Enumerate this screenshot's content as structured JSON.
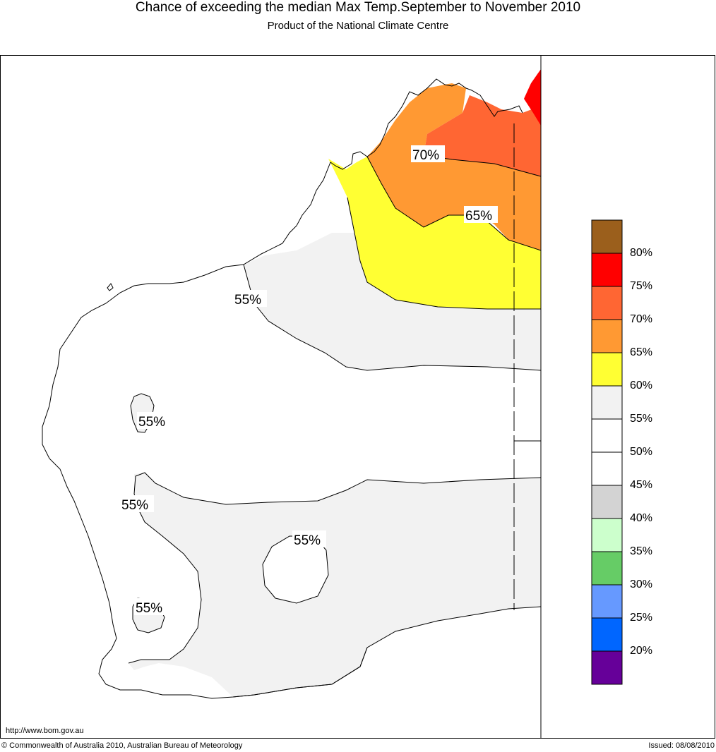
{
  "header": {
    "title": "Chance of exceeding the median Max Temp.September to November 2010",
    "subtitle": "Product of the National Climate Centre"
  },
  "footer": {
    "url": "http://www.bom.gov.au",
    "copyright": "© Commonwealth of Australia 2010, Australian Bureau of Meteorology",
    "issued": "Issued: 08/08/2010"
  },
  "legend": {
    "colors": [
      "#9b5f1c",
      "#ff0000",
      "#ff6633",
      "#ff9933",
      "#ffff33",
      "#f2f2f2",
      "#ffffff",
      "#ffffff",
      "#d3d3d3",
      "#ccffcc",
      "#66cc66",
      "#6699ff",
      "#0066ff",
      "#660099"
    ],
    "labels": [
      "80%",
      "75%",
      "70%",
      "65%",
      "60%",
      "55%",
      "50%",
      "45%",
      "40%",
      "35%",
      "30%",
      "25%",
      "20%"
    ]
  },
  "contour_labels": [
    "70%",
    "65%",
    "55%",
    "55%",
    "55%",
    "55%",
    "55%"
  ]
}
